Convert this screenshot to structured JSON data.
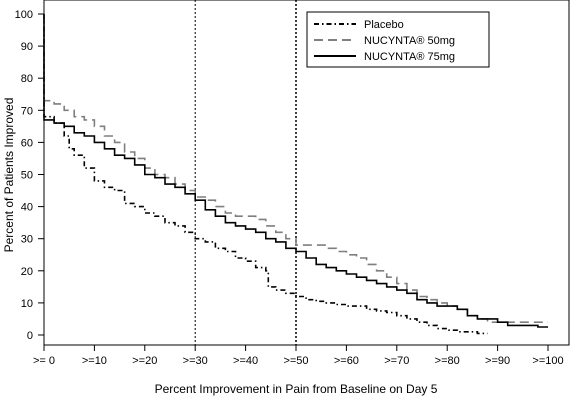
{
  "chart_data": {
    "type": "line",
    "title": "",
    "xlabel": "Percent Improvement in Pain from Baseline on Day 5",
    "ylabel": "Percent of Patients Improved",
    "xlim": [
      0,
      100
    ],
    "ylim": [
      0,
      100
    ],
    "x_ticks": [
      0,
      10,
      20,
      30,
      40,
      50,
      60,
      70,
      80,
      90,
      100
    ],
    "x_tick_labels": [
      ">= 0",
      ">=10",
      ">=20",
      ">=30",
      ">=40",
      ">=50",
      ">=60",
      ">=70",
      ">=80",
      ">=90",
      ">=100"
    ],
    "y_ticks": [
      0,
      10,
      20,
      30,
      40,
      50,
      60,
      70,
      80,
      90,
      100
    ],
    "y_tick_labels": [
      "0",
      "10",
      "20",
      "30",
      "40",
      "50",
      "60",
      "70",
      "80",
      "90",
      "100"
    ],
    "reference_lines_x": [
      30,
      50
    ],
    "grid": false,
    "legend_position": "top-right",
    "series": [
      {
        "name": "Placebo",
        "style": "dash-dot",
        "color": "#000000",
        "x": [
          0,
          2,
          4,
          5,
          6,
          8,
          10,
          12,
          14,
          16,
          18,
          20,
          22,
          24,
          26,
          28,
          30,
          32,
          34,
          36,
          38,
          40,
          42,
          44,
          44.5,
          46,
          48,
          50,
          52,
          54,
          56,
          58,
          60,
          62,
          64,
          66,
          68,
          70,
          72,
          74,
          76,
          78,
          80,
          82,
          84,
          86,
          88
        ],
        "y": [
          68,
          66,
          62,
          58,
          56,
          52,
          48,
          46,
          45,
          41,
          40,
          38,
          37,
          35,
          34,
          32,
          30,
          29,
          27,
          26,
          24,
          23,
          21,
          20,
          15,
          14,
          13,
          12,
          11,
          10.5,
          10,
          9.5,
          9,
          9,
          8,
          7.5,
          7,
          6,
          5,
          4,
          3,
          2,
          1.5,
          1,
          1,
          0.5,
          0.5
        ]
      },
      {
        "name": "NUCYNTA® 50mg",
        "style": "long-dash",
        "color": "#7f7f7f",
        "x": [
          0,
          2,
          4,
          6,
          8,
          10,
          12,
          14,
          16,
          18,
          20,
          22,
          24,
          26,
          28,
          30,
          32,
          34,
          36,
          38,
          40,
          42,
          44,
          46,
          48,
          50,
          52,
          54,
          56,
          58,
          60,
          62,
          64,
          66,
          68,
          70,
          72,
          74,
          76,
          78,
          80,
          82,
          84,
          86,
          88,
          90,
          92,
          94,
          96,
          98,
          100
        ],
        "y": [
          73,
          72,
          70,
          68,
          67,
          65,
          62,
          60,
          57,
          55,
          52,
          50,
          49,
          47,
          45,
          43,
          42,
          40,
          38,
          37,
          37,
          36,
          34,
          32,
          30,
          28,
          28,
          28,
          27,
          26,
          25,
          24,
          22,
          20,
          18,
          16,
          14,
          12,
          11,
          10,
          9,
          8,
          6,
          5,
          4,
          4,
          4,
          4,
          4,
          4,
          4
        ]
      },
      {
        "name": "NUCYNTA® 75mg",
        "style": "solid",
        "color": "#000000",
        "x": [
          0,
          2,
          4,
          6,
          8,
          10,
          12,
          14,
          16,
          18,
          20,
          22,
          24,
          26,
          28,
          30,
          32,
          34,
          36,
          38,
          40,
          42,
          44,
          46,
          48,
          50,
          52,
          54,
          56,
          58,
          60,
          62,
          64,
          66,
          68,
          70,
          72,
          74,
          76,
          78,
          80,
          82,
          84,
          86,
          88,
          90,
          92,
          94,
          96,
          98,
          100
        ],
        "y": [
          67,
          66,
          65,
          63,
          62,
          60,
          58,
          56,
          55,
          53,
          50,
          49,
          47,
          46,
          44,
          42,
          39,
          37,
          35,
          34,
          33,
          32,
          30,
          29,
          27,
          26,
          24,
          22,
          21,
          20,
          19,
          18,
          17,
          16,
          15,
          14,
          13,
          11,
          10,
          9,
          9,
          8,
          6,
          5,
          5,
          4,
          3,
          3,
          3,
          2.5,
          2.5
        ]
      }
    ]
  }
}
